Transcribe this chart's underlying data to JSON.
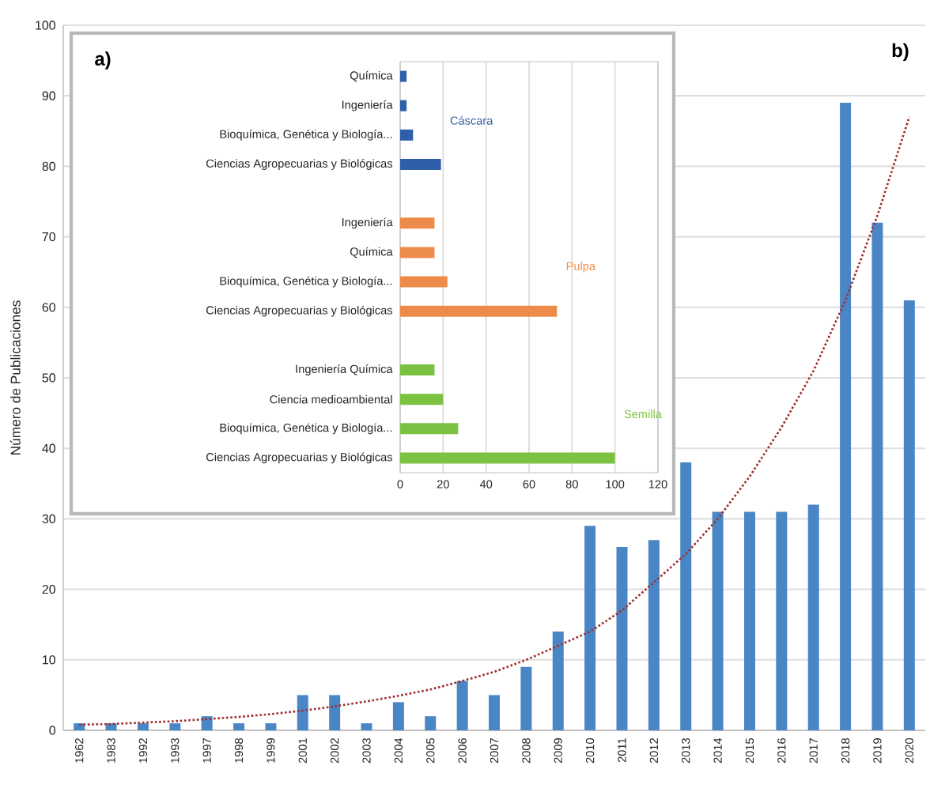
{
  "chart_data": [
    {
      "type": "bar",
      "orientation": "horizontal",
      "annotations": [
        "a)"
      ],
      "categories": [
        "Química",
        "Ingeniería",
        "Bioquímica, Genética y Biología...",
        "Ciencias Agropecuarias y Biológicas",
        null,
        "Ingeniería",
        "Química",
        "Bioquímica, Genética y Biología...",
        "Ciencias Agropecuarias y Biológicas",
        null,
        "Ingeniería Química",
        "Ciencia medioambiental",
        "Bioquímica, Genética y Biología...",
        "Ciencias Agropecuarias y Biológicas"
      ],
      "series": [
        {
          "name": "Cáscara",
          "color": "#2f5fa8",
          "values": [
            3,
            3,
            6,
            19,
            null,
            null,
            null,
            null,
            null,
            null,
            null,
            null,
            null,
            null
          ]
        },
        {
          "name": "Pulpa",
          "color": "#ed8c4a",
          "values": [
            null,
            null,
            null,
            null,
            null,
            16,
            16,
            22,
            73,
            null,
            null,
            null,
            null,
            null
          ]
        },
        {
          "name": "Semilla",
          "color": "#7cc242",
          "values": [
            null,
            null,
            null,
            null,
            null,
            null,
            null,
            null,
            null,
            null,
            16,
            20,
            27,
            100
          ]
        }
      ],
      "xlim": [
        0,
        120
      ],
      "xticks": [
        0,
        20,
        40,
        60,
        80,
        100,
        120
      ],
      "grid": "x"
    },
    {
      "type": "bar",
      "annotations": [
        "b)"
      ],
      "ylabel": "Número de Publicaciones",
      "categories": [
        "1962",
        "1983",
        "1992",
        "1993",
        "1997",
        "1998",
        "1999",
        "2001",
        "2002",
        "2003",
        "2004",
        "2005",
        "2006",
        "2007",
        "2008",
        "2009",
        "2010",
        "2011",
        "2012",
        "2013",
        "2014",
        "2015",
        "2016",
        "2017",
        "2018",
        "2019",
        "2020"
      ],
      "series": [
        {
          "type": "bar",
          "color": "#4a86c5",
          "values": [
            1,
            1,
            1,
            1,
            2,
            1,
            1,
            5,
            5,
            1,
            4,
            2,
            7,
            5,
            9,
            14,
            29,
            26,
            27,
            38,
            31,
            31,
            31,
            32,
            89,
            72,
            61
          ]
        },
        {
          "type": "line",
          "color": "#a03030",
          "line_style": "dotted",
          "marker": "none",
          "values": [
            0.8,
            0.9,
            1.1,
            1.3,
            1.6,
            1.9,
            2.3,
            2.8,
            3.4,
            4.1,
            4.9,
            5.8,
            7.0,
            8.3,
            10,
            12,
            14,
            17,
            21,
            25,
            30,
            36,
            43,
            51,
            61,
            73,
            87
          ]
        }
      ],
      "ylim": [
        0,
        100
      ],
      "yticks": [
        0,
        10,
        20,
        30,
        40,
        50,
        60,
        70,
        80,
        90,
        100
      ],
      "grid": "y"
    }
  ]
}
